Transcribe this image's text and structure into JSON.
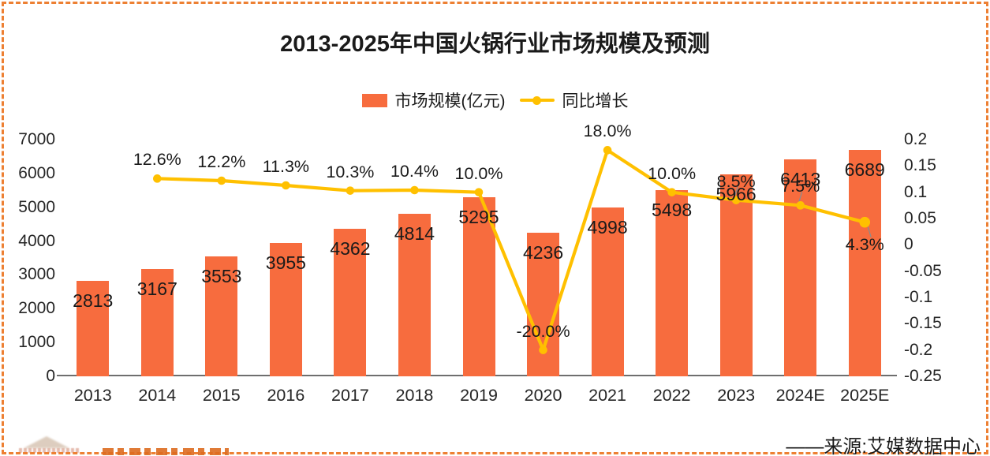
{
  "title": "2013-2025年中国火锅行业市场规模及预测",
  "source": "——来源:艾媒数据中心",
  "colors": {
    "bar": "#F76C3E",
    "line": "#FFC000",
    "border": "#ED8033",
    "axis_text": "#262626",
    "leader_line": "#8C8C8C"
  },
  "chart_data": {
    "type": "bar+line combo",
    "title": "2013-2025年中国火锅行业市场规模及预测",
    "categories": [
      "2013",
      "2014",
      "2015",
      "2016",
      "2017",
      "2018",
      "2019",
      "2020",
      "2021",
      "2022",
      "2023",
      "2024E",
      "2025E"
    ],
    "series": [
      {
        "name": "市场规模(亿元)",
        "type": "bar",
        "axis": "left",
        "color": "#F76C3E",
        "values": [
          2813,
          3167,
          3553,
          3955,
          4362,
          4814,
          5295,
          4236,
          4998,
          5498,
          5966,
          6413,
          6689
        ],
        "data_labels": [
          "2813",
          "3167",
          "3553",
          "3955",
          "4362",
          "4814",
          "5295",
          "4236",
          "4998",
          "5498",
          "5966",
          "6413",
          "6689"
        ]
      },
      {
        "name": "同比增长",
        "type": "line",
        "axis": "right",
        "color": "#FFC000",
        "values": [
          null,
          0.126,
          0.122,
          0.113,
          0.103,
          0.104,
          0.1,
          -0.2,
          0.18,
          0.1,
          0.085,
          0.075,
          0.043
        ],
        "data_labels": [
          null,
          "12.6%",
          "12.2%",
          "11.3%",
          "10.3%",
          "10.4%",
          "10.0%",
          "-20.0%",
          "18.0%",
          "10.0%",
          "8.5%",
          "7.5%",
          "4.3%"
        ],
        "leader_line_indices": [
          10,
          11,
          12
        ],
        "last_label_below": true
      }
    ],
    "left_axis": {
      "min": 0,
      "max": 7000,
      "ticks": [
        "7000",
        "6000",
        "5000",
        "4000",
        "3000",
        "2000",
        "1000",
        "0"
      ]
    },
    "right_axis": {
      "min": -0.25,
      "max": 0.2,
      "ticks": [
        "0.2",
        "0.15",
        "0.1",
        "0.05",
        "0",
        "-0.05",
        "-0.1",
        "-0.15",
        "-0.2",
        "-0.25"
      ]
    },
    "grid": false,
    "legend_position": "top-center"
  }
}
